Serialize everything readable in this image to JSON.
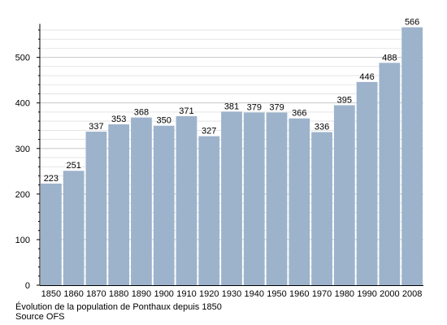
{
  "chart_data": {
    "type": "bar",
    "categories": [
      "1850",
      "1860",
      "1870",
      "1880",
      "1890",
      "1900",
      "1910",
      "1920",
      "1930",
      "1940",
      "1950",
      "1960",
      "1970",
      "1980",
      "1990",
      "2000",
      "2008"
    ],
    "values": [
      223,
      251,
      337,
      353,
      368,
      350,
      371,
      327,
      381,
      379,
      379,
      366,
      336,
      395,
      446,
      488,
      566
    ],
    "value_labels": [
      "223",
      "251",
      "337",
      "353",
      "368",
      "350",
      "371",
      "327",
      "381",
      "379",
      "379",
      "366",
      "336",
      "395",
      "446",
      "488",
      "566"
    ],
    "y_ticks": [
      0,
      100,
      200,
      300,
      400,
      500
    ],
    "ylim": [
      0,
      570
    ],
    "grid": true,
    "bar_color": "#9db3cc",
    "grid_color": "#d4d4d4",
    "title": "",
    "xlabel": "",
    "ylabel": ""
  },
  "caption": {
    "line1": "Évolution de la population de Ponthaux depuis 1850",
    "line2": "Source OFS"
  }
}
